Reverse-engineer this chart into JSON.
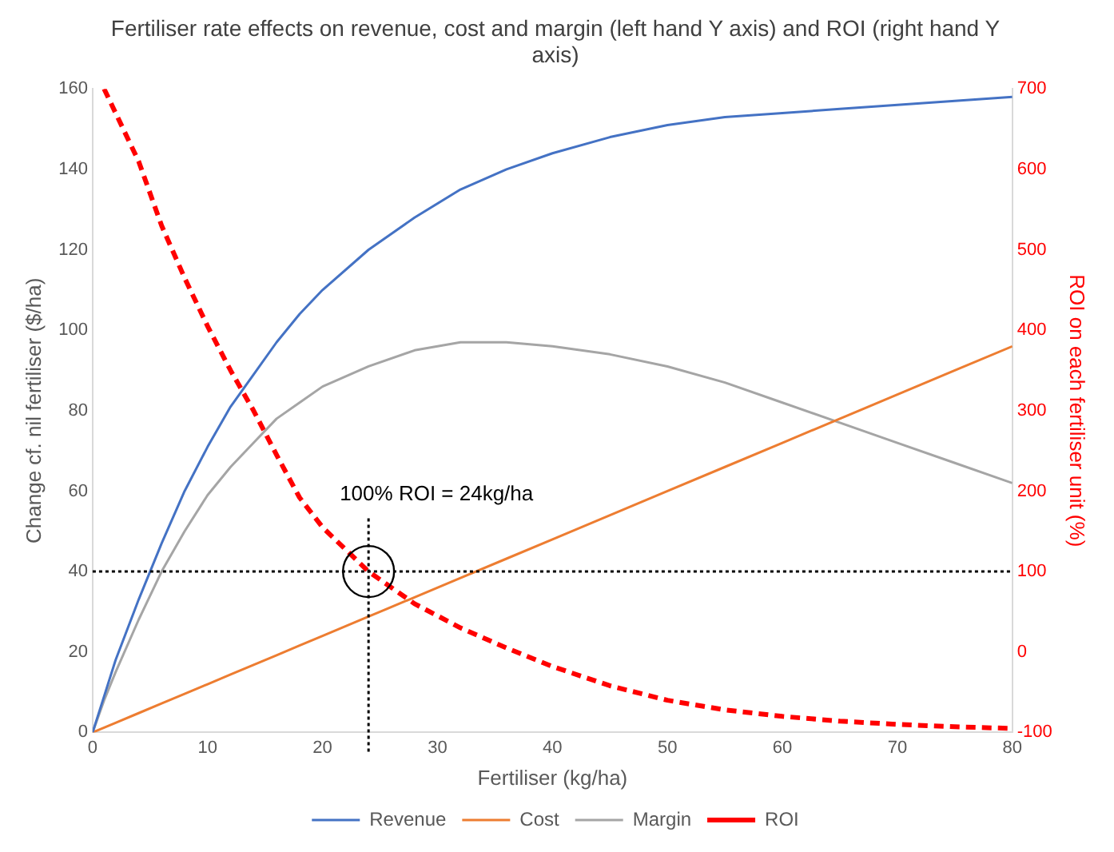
{
  "chart_data": {
    "type": "line",
    "title": "Fertiliser rate effects on revenue, cost and margin (left hand Y axis) and ROI (right hand Y axis)",
    "xlabel": "Fertiliser (kg/ha)",
    "ylabel": "Change cf. nil fertiliser ($/ha)",
    "y2label": "ROI on each fertiliser unit (%)",
    "x": [
      0,
      1,
      2,
      4,
      6,
      8,
      10,
      12,
      14,
      16,
      18,
      20,
      24,
      28,
      32,
      36,
      40,
      45,
      50,
      55,
      60,
      65,
      70,
      75,
      80
    ],
    "series": [
      {
        "name": "Revenue",
        "color": "#4472c4",
        "values": [
          0,
          9,
          18,
          33,
          47,
          60,
          71,
          81,
          89,
          97,
          104,
          110,
          120,
          128,
          135,
          140,
          144,
          148,
          151,
          153,
          154,
          155,
          156,
          157,
          158
        ]
      },
      {
        "name": "Cost",
        "color": "#ed7d31",
        "values": [
          0,
          1.2,
          2.4,
          4.8,
          7.2,
          9.6,
          12,
          14.4,
          16.8,
          19.2,
          21.6,
          24,
          28.8,
          33.6,
          38.4,
          43.2,
          48,
          54,
          60,
          66,
          72,
          78,
          84,
          90,
          96
        ]
      },
      {
        "name": "Margin",
        "color": "#a5a5a5",
        "values": [
          0,
          8,
          15,
          28,
          40,
          50,
          59,
          66,
          72,
          78,
          82,
          86,
          91,
          95,
          97,
          97,
          96,
          94,
          91,
          87,
          82,
          77,
          72,
          67,
          62
        ]
      },
      {
        "name": "ROI",
        "color": "#ff0000",
        "axis": "y2",
        "line_style": "dashed",
        "x": [
          1,
          2,
          4,
          6,
          8,
          10,
          12,
          14,
          16,
          18,
          20,
          24,
          28,
          32,
          36,
          40,
          45,
          50,
          55,
          60,
          65,
          70,
          75,
          80
        ],
        "values": [
          700,
          670,
          610,
          530,
          465,
          405,
          350,
          300,
          245,
          192,
          155,
          100,
          60,
          30,
          5,
          -18,
          -42,
          -60,
          -72,
          -80,
          -86,
          -90,
          -93,
          -95
        ]
      }
    ],
    "xlim": [
      0,
      80
    ],
    "xticks": [
      0,
      10,
      20,
      30,
      40,
      50,
      60,
      70,
      80
    ],
    "ylim": [
      0,
      160
    ],
    "yticks": [
      0,
      20,
      40,
      60,
      80,
      100,
      120,
      140,
      160
    ],
    "y2lim": [
      -100,
      700
    ],
    "y2ticks": [
      -100,
      0,
      100,
      200,
      300,
      400,
      500,
      600,
      700
    ],
    "ref_lines": [
      {
        "axis": "y",
        "value": 40,
        "color": "#000000",
        "line_style": "dotted"
      },
      {
        "axis": "x",
        "value": 24,
        "color": "#000000",
        "line_style": "dotted"
      }
    ],
    "annotations": [
      "100% ROI = 24kg/ha"
    ],
    "marker": "none",
    "grid": false,
    "legend": "bottom"
  }
}
